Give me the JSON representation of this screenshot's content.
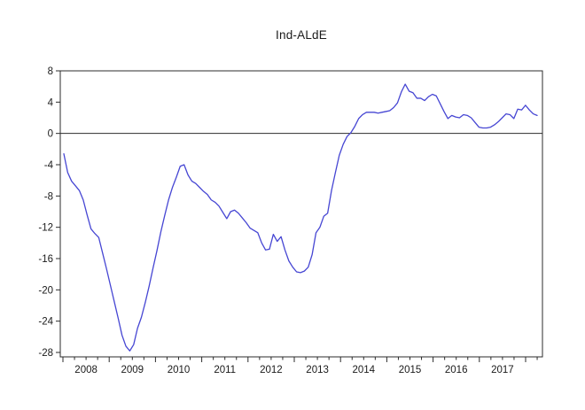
{
  "page": {
    "background": "#ffffff"
  },
  "chart_data": {
    "type": "line",
    "title": "Ind-ALdE",
    "legend": "none",
    "grid": false,
    "zero_line": true,
    "axis_color": "#2b2b2b",
    "text_color": "#1a1a1a",
    "y_ticks": [
      8,
      4,
      0,
      -4,
      -8,
      -12,
      -16,
      -20,
      -24,
      -28
    ],
    "y_tick_labels": [
      "8",
      "4",
      "0",
      "-4",
      "-8",
      "-12",
      "-16",
      "-20",
      "-24",
      "-28"
    ],
    "ylim": [
      -28.6,
      8
    ],
    "x_tick_labels": [
      "2008",
      "2009",
      "2010",
      "2011",
      "2012",
      "2013",
      "2014",
      "2015",
      "2016",
      "2017"
    ],
    "xlim_years": [
      2007.94,
      2018.36
    ],
    "minor_ticks_per_year": 4,
    "series": [
      {
        "name": "Ind-ALdE",
        "color": "#4646d3",
        "frequency": "monthly",
        "start_period": "2008M01",
        "values": [
          -2.6,
          -5.0,
          -6.1,
          -6.7,
          -7.3,
          -8.5,
          -10.4,
          -12.2,
          -12.8,
          -13.3,
          -15.3,
          -17.3,
          -19.4,
          -21.5,
          -23.6,
          -25.8,
          -27.2,
          -27.8,
          -27.0,
          -24.9,
          -23.5,
          -21.6,
          -19.5,
          -17.2,
          -15.0,
          -12.6,
          -10.5,
          -8.5,
          -6.9,
          -5.6,
          -4.2,
          -4.0,
          -5.3,
          -6.1,
          -6.4,
          -6.9,
          -7.4,
          -7.8,
          -8.5,
          -8.8,
          -9.3,
          -10.1,
          -10.9,
          -10.0,
          -9.8,
          -10.2,
          -10.8,
          -11.4,
          -12.1,
          -12.4,
          -12.7,
          -14.0,
          -14.9,
          -14.8,
          -12.9,
          -13.8,
          -13.2,
          -14.9,
          -16.3,
          -17.1,
          -17.7,
          -17.8,
          -17.6,
          -17.1,
          -15.5,
          -12.7,
          -12.0,
          -10.6,
          -10.2,
          -7.3,
          -5.0,
          -2.8,
          -1.4,
          -0.4,
          0.1,
          0.9,
          1.9,
          2.4,
          2.7,
          2.7,
          2.7,
          2.6,
          2.7,
          2.8,
          2.9,
          3.3,
          3.9,
          5.3,
          6.3,
          5.4,
          5.2,
          4.5,
          4.5,
          4.2,
          4.7,
          5.0,
          4.8,
          3.8,
          2.8,
          1.9,
          2.3,
          2.1,
          2.0,
          2.4,
          2.3,
          2.0,
          1.4,
          0.8,
          0.7,
          0.7,
          0.8,
          1.1,
          1.5,
          2.0,
          2.5,
          2.4,
          1.9,
          3.1,
          3.0,
          3.6,
          3.0,
          2.5,
          2.3
        ]
      }
    ]
  }
}
